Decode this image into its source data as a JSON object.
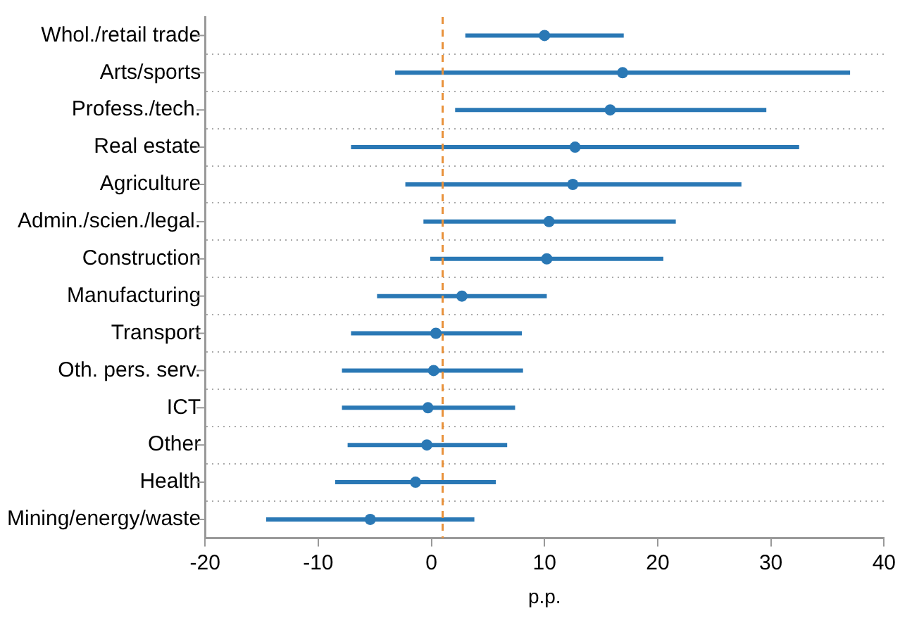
{
  "chart_data": {
    "type": "scatter",
    "orientation": "horizontal",
    "xlabel": "p.p.",
    "categories": [
      "Whol./retail trade",
      "Arts/sports",
      "Profess./tech.",
      "Real estate",
      "Agriculture",
      "Admin./scien./legal.",
      "Construction",
      "Manufacturing",
      "Transport",
      "Oth. pers. serv.",
      "ICT",
      "Other",
      "Health",
      "Mining/energy/waste"
    ],
    "values": [
      10.0,
      16.9,
      15.8,
      12.7,
      12.5,
      10.4,
      10.2,
      2.7,
      0.4,
      0.2,
      -0.3,
      -0.4,
      -1.4,
      -5.4
    ],
    "errors": [
      [
        3.0,
        17.0
      ],
      [
        -3.2,
        37.0
      ],
      [
        2.1,
        29.6
      ],
      [
        -7.1,
        32.5
      ],
      [
        -2.3,
        27.4
      ],
      [
        -0.7,
        21.6
      ],
      [
        -0.1,
        20.5
      ],
      [
        -4.8,
        10.2
      ],
      [
        -7.1,
        8.0
      ],
      [
        -7.9,
        8.1
      ],
      [
        -7.9,
        7.4
      ],
      [
        -7.4,
        6.7
      ],
      [
        -8.5,
        5.7
      ],
      [
        -14.6,
        3.8
      ]
    ],
    "color": "#2a78b5",
    "marker": "circle",
    "xlim": [
      -20,
      40
    ],
    "xticks": [
      -20,
      -10,
      0,
      10,
      20,
      30,
      40
    ],
    "ref_lines": [
      {
        "axis": "x",
        "value": 1,
        "color": "#e8913a",
        "line_style": "dashed"
      }
    ],
    "grid": "y",
    "legend": false
  }
}
